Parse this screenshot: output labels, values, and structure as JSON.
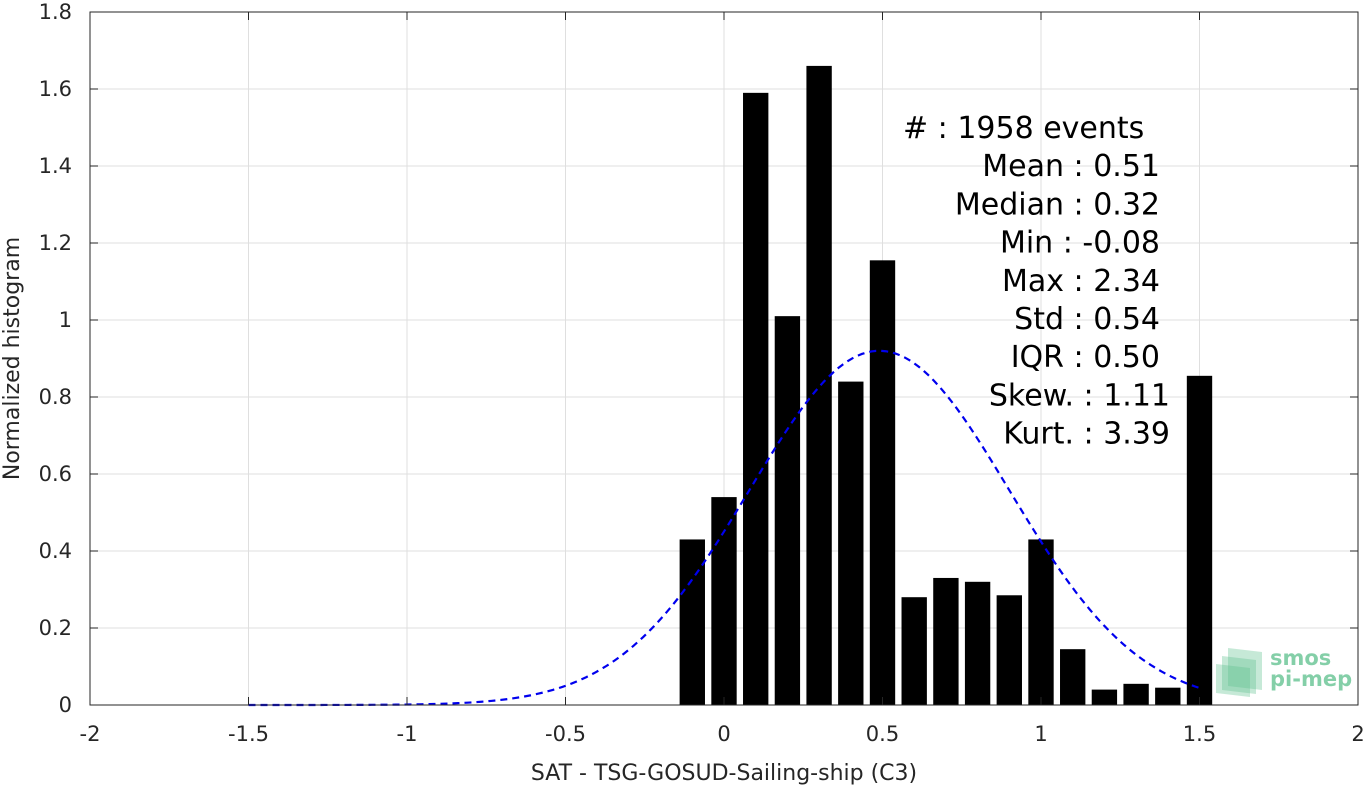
{
  "chart_data": {
    "type": "bar",
    "xlabel": "SAT - TSG-GOSUD-Sailing-ship (C3)",
    "ylabel": "Normalized histogram",
    "xlim": [
      -2,
      2
    ],
    "ylim": [
      0,
      1.8
    ],
    "xticks": [
      -2,
      -1.5,
      -1,
      -0.5,
      0,
      0.5,
      1,
      1.5,
      2
    ],
    "xtick_labels": [
      "-2",
      "-1.5",
      "-1",
      "-0.5",
      "0",
      "0.5",
      "1",
      "1.5",
      "2"
    ],
    "yticks": [
      0,
      0.2,
      0.4,
      0.6,
      0.8,
      1,
      1.2,
      1.4,
      1.6,
      1.8
    ],
    "ytick_labels": [
      "0",
      "0.2",
      "0.4",
      "0.6",
      "0.8",
      "1",
      "1.2",
      "1.4",
      "1.6",
      "1.8"
    ],
    "grid": true,
    "bar_color": "#000000",
    "bin_width": 0.1,
    "bars": {
      "x": [
        -0.1,
        0.0,
        0.1,
        0.2,
        0.3,
        0.4,
        0.5,
        0.6,
        0.7,
        0.8,
        0.9,
        1.0,
        1.1,
        1.2,
        1.3,
        1.4,
        1.5
      ],
      "values": [
        0.43,
        0.54,
        1.59,
        1.01,
        1.66,
        0.84,
        1.155,
        0.28,
        0.33,
        0.32,
        0.285,
        0.43,
        0.145,
        0.04,
        0.055,
        0.045,
        0.855
      ]
    },
    "fit_curve": {
      "style": "dashed",
      "color": "#0000ee",
      "mean": 0.49,
      "std": 0.41,
      "peak": 0.92,
      "x_range": [
        -1.5,
        1.5
      ]
    },
    "stats": [
      {
        "label": "#  : 1958 events",
        "anchor": "start"
      },
      {
        "label": "Mean : 0.51",
        "anchor": "end"
      },
      {
        "label": "Median : 0.32",
        "anchor": "end"
      },
      {
        "label": "Min : -0.08",
        "anchor": "end"
      },
      {
        "label": "Max : 2.34",
        "anchor": "end"
      },
      {
        "label": "Std : 0.54",
        "anchor": "end"
      },
      {
        "label": "IQR : 0.50",
        "anchor": "end"
      },
      {
        "label": "Skew. : 1.11",
        "anchor": "end"
      },
      {
        "label": "Kurt. : 3.39",
        "anchor": "end"
      }
    ]
  },
  "logo": {
    "line1": "smos",
    "line2": "pi-mep",
    "color": "#5cbf8c"
  }
}
